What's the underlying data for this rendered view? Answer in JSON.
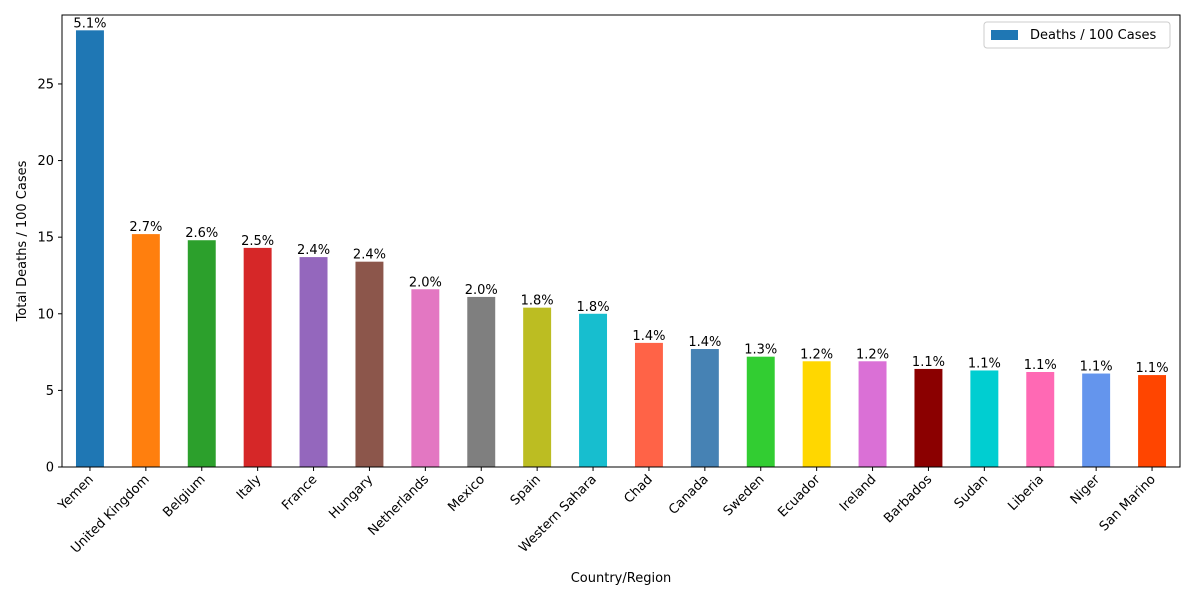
{
  "chart_data": {
    "type": "bar",
    "title": "",
    "xlabel": "Country/Region",
    "ylabel": "Total Deaths / 100 Cases",
    "ylim": [
      0,
      29.5
    ],
    "yticks": [
      0,
      5,
      10,
      15,
      20,
      25
    ],
    "legend": {
      "label": "Deaths / 100 Cases",
      "color": "#1f77b4",
      "position": "top-right"
    },
    "grid": false,
    "categories": [
      "Yemen",
      "United Kingdom",
      "Belgium",
      "Italy",
      "France",
      "Hungary",
      "Netherlands",
      "Mexico",
      "Spain",
      "Western Sahara",
      "Chad",
      "Canada",
      "Sweden",
      "Ecuador",
      "Ireland",
      "Barbados",
      "Sudan",
      "Liberia",
      "Niger",
      "San Marino"
    ],
    "values": [
      28.5,
      15.2,
      14.8,
      14.3,
      13.7,
      13.4,
      11.6,
      11.1,
      10.4,
      10.0,
      8.1,
      7.7,
      7.2,
      6.9,
      6.9,
      6.4,
      6.3,
      6.2,
      6.1,
      6.0
    ],
    "data_labels": [
      "5.1%",
      "2.7%",
      "2.6%",
      "2.5%",
      "2.4%",
      "2.4%",
      "2.0%",
      "2.0%",
      "1.8%",
      "1.8%",
      "1.4%",
      "1.4%",
      "1.3%",
      "1.2%",
      "1.2%",
      "1.1%",
      "1.1%",
      "1.1%",
      "1.1%",
      "1.1%"
    ],
    "colors": [
      "#1f77b4",
      "#ff7f0e",
      "#2ca02c",
      "#d62728",
      "#9467bd",
      "#8c564b",
      "#e377c2",
      "#7f7f7f",
      "#bcbd22",
      "#17becf",
      "#ff6347",
      "#4682b4",
      "#32cd32",
      "#ffd700",
      "#da70d6",
      "#8b0000",
      "#00ced1",
      "#ff69b4",
      "#6495ed",
      "#ff4500"
    ]
  }
}
